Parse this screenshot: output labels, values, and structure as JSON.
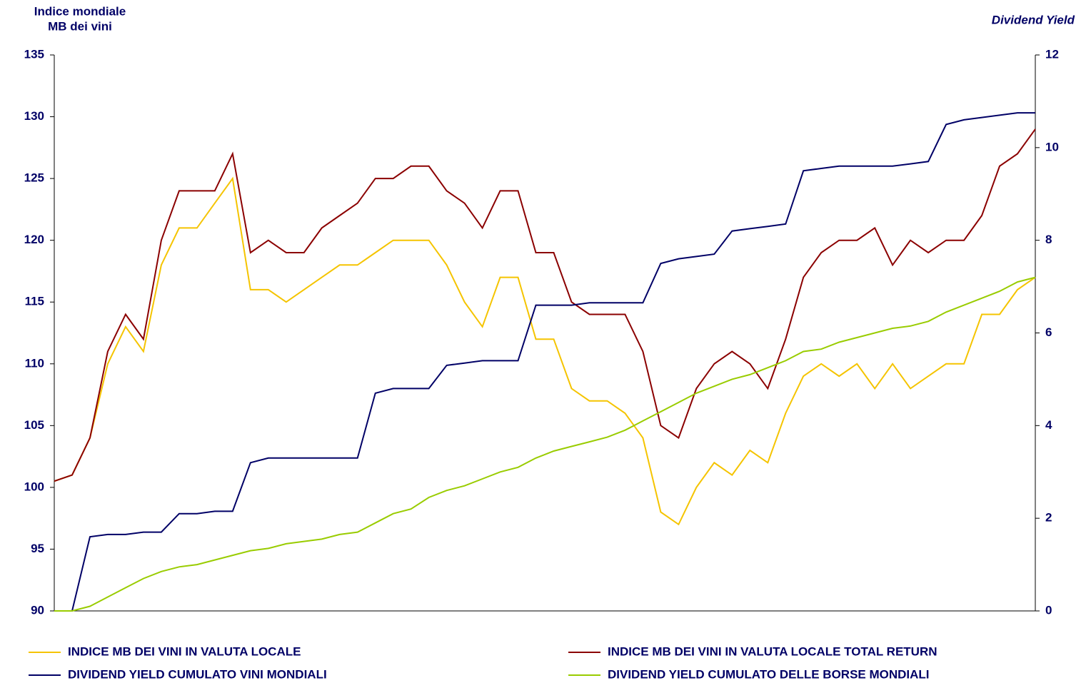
{
  "chart_data": {
    "type": "line",
    "y_label": [
      "Indice mondiale",
      "MB dei vini"
    ],
    "y2_label": "Dividend Yield",
    "ylim": [
      90,
      135
    ],
    "yticks": [
      90,
      95,
      100,
      105,
      110,
      115,
      120,
      125,
      130,
      135
    ],
    "y2lim": [
      0,
      12
    ],
    "y2ticks": [
      0,
      2,
      4,
      6,
      8,
      10,
      12
    ],
    "series": [
      {
        "name": "INDICE MB DEI VINI IN VALUTA LOCALE",
        "color": "#f5c400",
        "values": [
          100.5,
          101,
          104,
          110,
          113,
          111,
          118,
          121,
          121,
          123,
          125,
          116,
          116,
          115,
          116,
          117,
          118,
          118,
          119,
          120,
          120,
          120,
          118,
          115,
          113,
          117,
          117,
          112,
          112,
          108,
          107,
          107,
          106,
          104,
          98,
          97,
          100,
          102,
          101,
          103,
          102,
          106,
          109,
          110,
          109,
          110,
          108,
          110,
          108,
          109,
          110,
          110,
          114,
          114,
          116,
          117
        ]
      },
      {
        "name": "INDICE MB DEI VINI IN VALUTA LOCALE  TOTAL RETURN",
        "color": "#8b0000",
        "values": [
          100.5,
          101,
          104,
          111,
          114,
          112,
          120,
          124,
          124,
          124,
          127,
          119,
          120,
          119,
          119,
          121,
          122,
          123,
          125,
          125,
          126,
          126,
          124,
          123,
          121,
          124,
          124,
          119,
          119,
          115,
          114,
          114,
          114,
          111,
          105,
          104,
          108,
          110,
          111,
          110,
          108,
          112,
          117,
          119,
          120,
          120,
          121,
          118,
          120,
          119,
          120,
          120,
          122,
          126,
          127,
          129
        ]
      },
      {
        "name": "DIVIDEND YIELD CUMULATO VINI MONDIALI",
        "color": "#000066",
        "axis": "y2",
        "values": [
          0,
          0,
          1.6,
          1.65,
          1.65,
          1.7,
          1.7,
          2.1,
          2.1,
          2.15,
          2.15,
          3.2,
          3.3,
          3.3,
          3.3,
          3.3,
          3.3,
          3.3,
          4.7,
          4.8,
          4.8,
          4.8,
          5.3,
          5.35,
          5.4,
          5.4,
          5.4,
          6.6,
          6.6,
          6.6,
          6.65,
          6.65,
          6.65,
          6.65,
          7.5,
          7.6,
          7.65,
          7.7,
          8.2,
          8.25,
          8.3,
          8.35,
          9.5,
          9.55,
          9.6,
          9.6,
          9.6,
          9.6,
          9.65,
          9.7,
          10.5,
          10.6,
          10.65,
          10.7,
          10.75,
          10.75
        ]
      },
      {
        "name": "DIVIDEND YIELD CUMULATO DELLE BORSE MONDIALI",
        "color": "#99cc00",
        "axis": "y2",
        "values": [
          0,
          0,
          0.1,
          0.3,
          0.5,
          0.7,
          0.85,
          0.95,
          1.0,
          1.1,
          1.2,
          1.3,
          1.35,
          1.45,
          1.5,
          1.55,
          1.65,
          1.7,
          1.9,
          2.1,
          2.2,
          2.45,
          2.6,
          2.7,
          2.85,
          3.0,
          3.1,
          3.3,
          3.45,
          3.55,
          3.65,
          3.75,
          3.9,
          4.1,
          4.3,
          4.5,
          4.7,
          4.85,
          5.0,
          5.1,
          5.25,
          5.4,
          5.6,
          5.65,
          5.8,
          5.9,
          6.0,
          6.1,
          6.15,
          6.25,
          6.45,
          6.6,
          6.75,
          6.9,
          7.1,
          7.2
        ]
      }
    ]
  }
}
